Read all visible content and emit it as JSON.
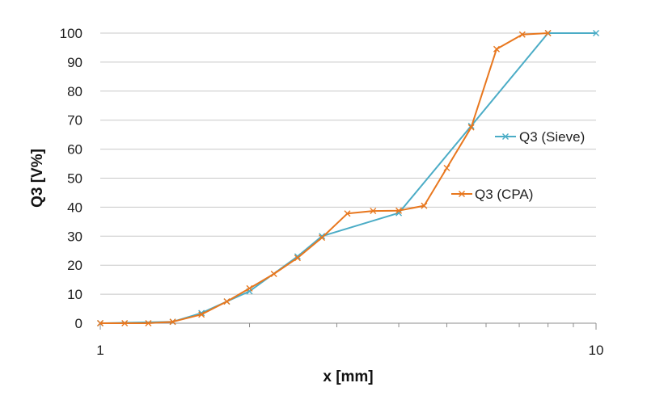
{
  "chart_data": {
    "type": "line",
    "xlabel": "x [mm]",
    "ylabel": "Q3 [V%]",
    "x_scale": "log",
    "xlim": [
      1,
      10
    ],
    "ylim": [
      0,
      100
    ],
    "x_ticks": [
      {
        "value": 1,
        "label": "1"
      },
      {
        "value": 10,
        "label": "10"
      }
    ],
    "y_ticks": [
      {
        "value": 0,
        "label": "0"
      },
      {
        "value": 10,
        "label": "10"
      },
      {
        "value": 20,
        "label": "20"
      },
      {
        "value": 30,
        "label": "30"
      },
      {
        "value": 40,
        "label": "40"
      },
      {
        "value": 50,
        "label": "50"
      },
      {
        "value": 60,
        "label": "60"
      },
      {
        "value": 70,
        "label": "70"
      },
      {
        "value": 80,
        "label": "80"
      },
      {
        "value": 90,
        "label": "90"
      },
      {
        "value": 100,
        "label": "100"
      }
    ],
    "grid": "horizontal",
    "series": [
      {
        "name": "Q3 (Sieve)",
        "color": "#4bacc6",
        "marker": "x",
        "points": [
          {
            "x": 1.0,
            "y": 0
          },
          {
            "x": 1.4,
            "y": 0.5
          },
          {
            "x": 1.6,
            "y": 3.5
          },
          {
            "x": 1.8,
            "y": 7.5
          },
          {
            "x": 2.0,
            "y": 11
          },
          {
            "x": 2.5,
            "y": 23
          },
          {
            "x": 2.8,
            "y": 30
          },
          {
            "x": 4.0,
            "y": 38
          },
          {
            "x": 5.6,
            "y": 68
          },
          {
            "x": 8.0,
            "y": 100
          },
          {
            "x": 10.0,
            "y": 100
          }
        ]
      },
      {
        "name": "Q3 (CPA)",
        "color": "#e8771e",
        "marker": "x",
        "points": [
          {
            "x": 1.0,
            "y": 0
          },
          {
            "x": 1.12,
            "y": 0
          },
          {
            "x": 1.25,
            "y": 0
          },
          {
            "x": 1.4,
            "y": 0.5
          },
          {
            "x": 1.6,
            "y": 3
          },
          {
            "x": 1.8,
            "y": 7.5
          },
          {
            "x": 2.0,
            "y": 12
          },
          {
            "x": 2.24,
            "y": 17
          },
          {
            "x": 2.5,
            "y": 22.5
          },
          {
            "x": 2.8,
            "y": 29.5
          },
          {
            "x": 3.15,
            "y": 37.8
          },
          {
            "x": 3.55,
            "y": 38.7
          },
          {
            "x": 4.0,
            "y": 38.8
          },
          {
            "x": 4.5,
            "y": 40.5
          },
          {
            "x": 5.0,
            "y": 53.5
          },
          {
            "x": 5.6,
            "y": 67.5
          },
          {
            "x": 6.3,
            "y": 94.5
          },
          {
            "x": 7.1,
            "y": 99.5
          },
          {
            "x": 8.0,
            "y": 100
          }
        ]
      }
    ]
  }
}
